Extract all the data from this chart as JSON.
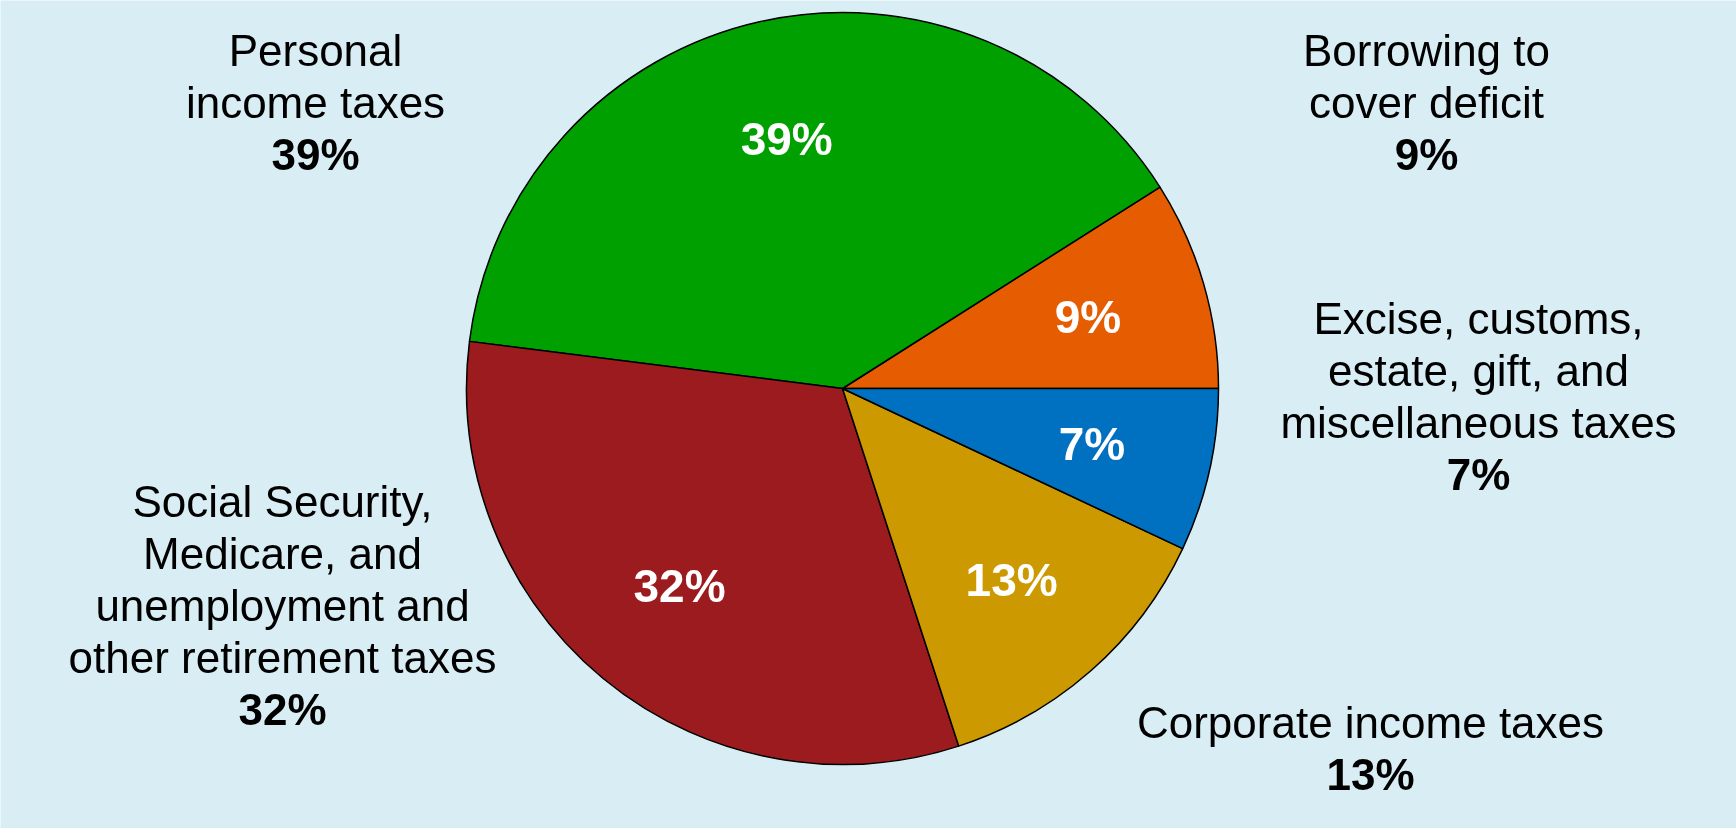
{
  "chart_data": {
    "type": "pie",
    "categories": [
      "Borrowing to cover deficit",
      "Personal income taxes",
      "Social Security, Medicare, and unemployment and other retirement taxes",
      "Corporate income taxes",
      "Excise, customs, estate, gift, and miscellaneous taxes"
    ],
    "values": [
      9,
      39,
      32,
      13,
      7
    ],
    "colors": [
      "#e65c00",
      "#00a000",
      "#9b1b1e",
      "#cc9900",
      "#0070c0"
    ],
    "value_labels": [
      "9%",
      "39%",
      "32%",
      "13%",
      "7%"
    ]
  }
}
